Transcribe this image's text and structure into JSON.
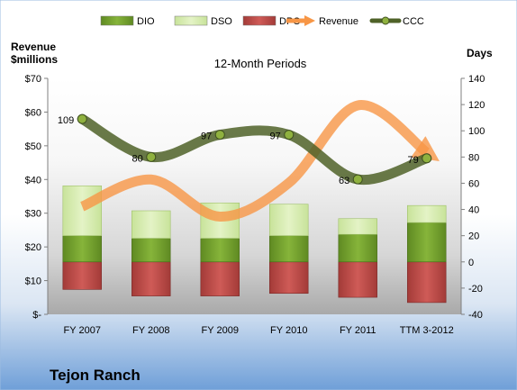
{
  "chart_data": {
    "type": "bar",
    "title": "12-Month Periods",
    "company": "Tejon Ranch",
    "left_axis_label": [
      "Revenue",
      "$millions"
    ],
    "right_axis_label": "Days",
    "categories": [
      "FY 2007",
      "FY 2008",
      "FY 2009",
      "FY 2010",
      "FY 2011",
      "TTM 3-2012"
    ],
    "left_ylim": [
      0,
      70
    ],
    "left_ticks": [
      "$-",
      "$10",
      "$20",
      "$30",
      "$40",
      "$50",
      "$60",
      "$70"
    ],
    "right_ylim": [
      -40,
      140
    ],
    "right_ticks": [
      "-40",
      "-20",
      "0",
      "20",
      "40",
      "60",
      "80",
      "100",
      "120",
      "140"
    ],
    "legend_position": "top",
    "legend": [
      {
        "name": "DIO",
        "color": "#6f9a2a",
        "kind": "bar"
      },
      {
        "name": "DSO",
        "color": "#d7eda7",
        "kind": "bar"
      },
      {
        "name": "DPO",
        "color": "#c0504d",
        "kind": "bar"
      },
      {
        "name": "Revenue",
        "color": "#f79646",
        "kind": "arrow"
      },
      {
        "name": "CCC",
        "color": "#4f6228",
        "kind": "line"
      }
    ],
    "series": [
      {
        "name": "DIO",
        "axis": "right",
        "values": [
          20,
          18,
          18,
          20,
          21,
          30
        ]
      },
      {
        "name": "DSO",
        "axis": "right",
        "values": [
          38,
          21,
          27,
          24,
          12,
          13
        ]
      },
      {
        "name": "DPO",
        "axis": "right",
        "values": [
          -21,
          -26,
          -26,
          -24,
          -27,
          -31
        ]
      },
      {
        "name": "Revenue",
        "axis": "left",
        "values": [
          32,
          40,
          29,
          39,
          62,
          48
        ]
      },
      {
        "name": "CCC",
        "axis": "right",
        "values": [
          109,
          80,
          97,
          97,
          63,
          79
        ]
      }
    ],
    "ccc_labels": [
      "109",
      "80",
      "97",
      "97",
      "63",
      "79"
    ]
  }
}
